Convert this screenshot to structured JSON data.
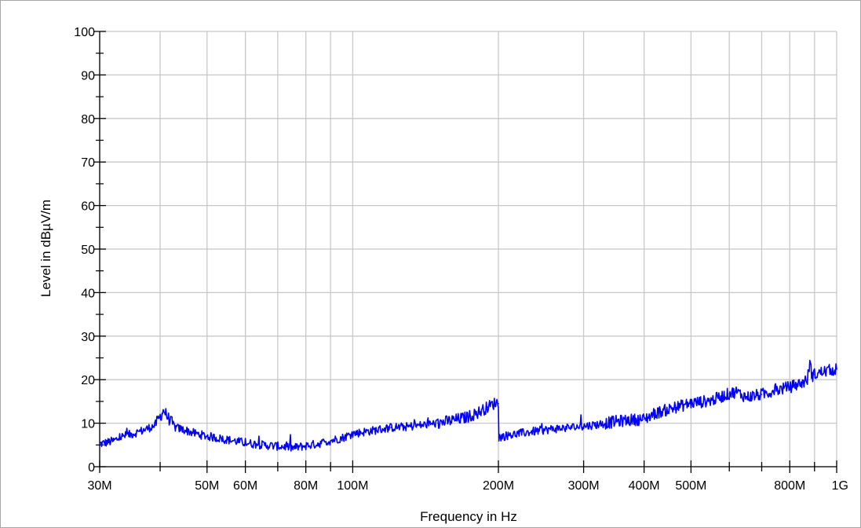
{
  "chart_data": {
    "type": "line",
    "xlabel": "Frequency in Hz",
    "ylabel": "Level in dBµV/m",
    "x_scale": "log",
    "xlim": [
      30000000,
      1000000000
    ],
    "ylim": [
      0,
      100
    ],
    "grid": true,
    "x_tick_values": [
      30000000,
      50000000,
      60000000,
      80000000,
      100000000,
      200000000,
      300000000,
      400000000,
      500000000,
      800000000,
      1000000000
    ],
    "x_tick_labels": [
      "30M",
      "50M",
      "60M",
      "80M",
      "100M",
      "200M",
      "300M",
      "400M",
      "500M",
      "800M",
      "1G"
    ],
    "x_grid_values": [
      30000000,
      40000000,
      50000000,
      60000000,
      70000000,
      80000000,
      90000000,
      100000000,
      200000000,
      300000000,
      400000000,
      500000000,
      600000000,
      700000000,
      800000000,
      900000000,
      1000000000
    ],
    "y_tick_values": [
      0,
      10,
      20,
      30,
      40,
      50,
      60,
      70,
      80,
      90,
      100
    ],
    "y_tick_labels": [
      "0",
      "10",
      "20",
      "30",
      "40",
      "50",
      "60",
      "70",
      "80",
      "90",
      "100"
    ],
    "colors": {
      "series": "#0000ff",
      "grid": "#c8c8c8",
      "axis": "#000000"
    },
    "series": [
      {
        "x": [
          30000000,
          32000000,
          33500000,
          35000000,
          37000000,
          39000000,
          40000000,
          40700000,
          41500000,
          43000000,
          45000000,
          47000000,
          50000000,
          55000000,
          60000000,
          65000000,
          70000000,
          73000000,
          75000000,
          80000000,
          85000000,
          90000000,
          95000000,
          100000000,
          110000000,
          120000000,
          130000000,
          140000000,
          150000000,
          160000000,
          170000000,
          180000000,
          190000000,
          198000000,
          200000000,
          200500000,
          205000000,
          220000000,
          240000000,
          260000000,
          280000000,
          300000000,
          320000000,
          350000000,
          380000000,
          400000000,
          420000000,
          450000000,
          500000000,
          550000000,
          600000000,
          620000000,
          650000000,
          700000000,
          750000000,
          800000000,
          850000000,
          870000000,
          880000000,
          890000000,
          900000000,
          950000000,
          1000000000
        ],
        "y": [
          5.2,
          5.9,
          7.0,
          7.5,
          8.4,
          9.5,
          11.5,
          13.0,
          11.3,
          9.0,
          8.4,
          7.7,
          7.0,
          6.2,
          5.5,
          5.0,
          4.7,
          4.6,
          4.3,
          4.8,
          5.3,
          6.0,
          6.6,
          7.6,
          8.3,
          9.0,
          9.2,
          9.6,
          10.0,
          10.6,
          11.2,
          12.2,
          13.7,
          14.8,
          14.5,
          6.8,
          7.0,
          7.6,
          8.2,
          8.7,
          9.0,
          9.3,
          9.7,
          10.4,
          10.8,
          10.9,
          12.2,
          13.2,
          14.6,
          15.2,
          16.8,
          17.2,
          16.0,
          16.6,
          17.6,
          18.3,
          19.3,
          20.0,
          24.0,
          20.8,
          21.2,
          22.0,
          22.4
        ]
      }
    ]
  }
}
